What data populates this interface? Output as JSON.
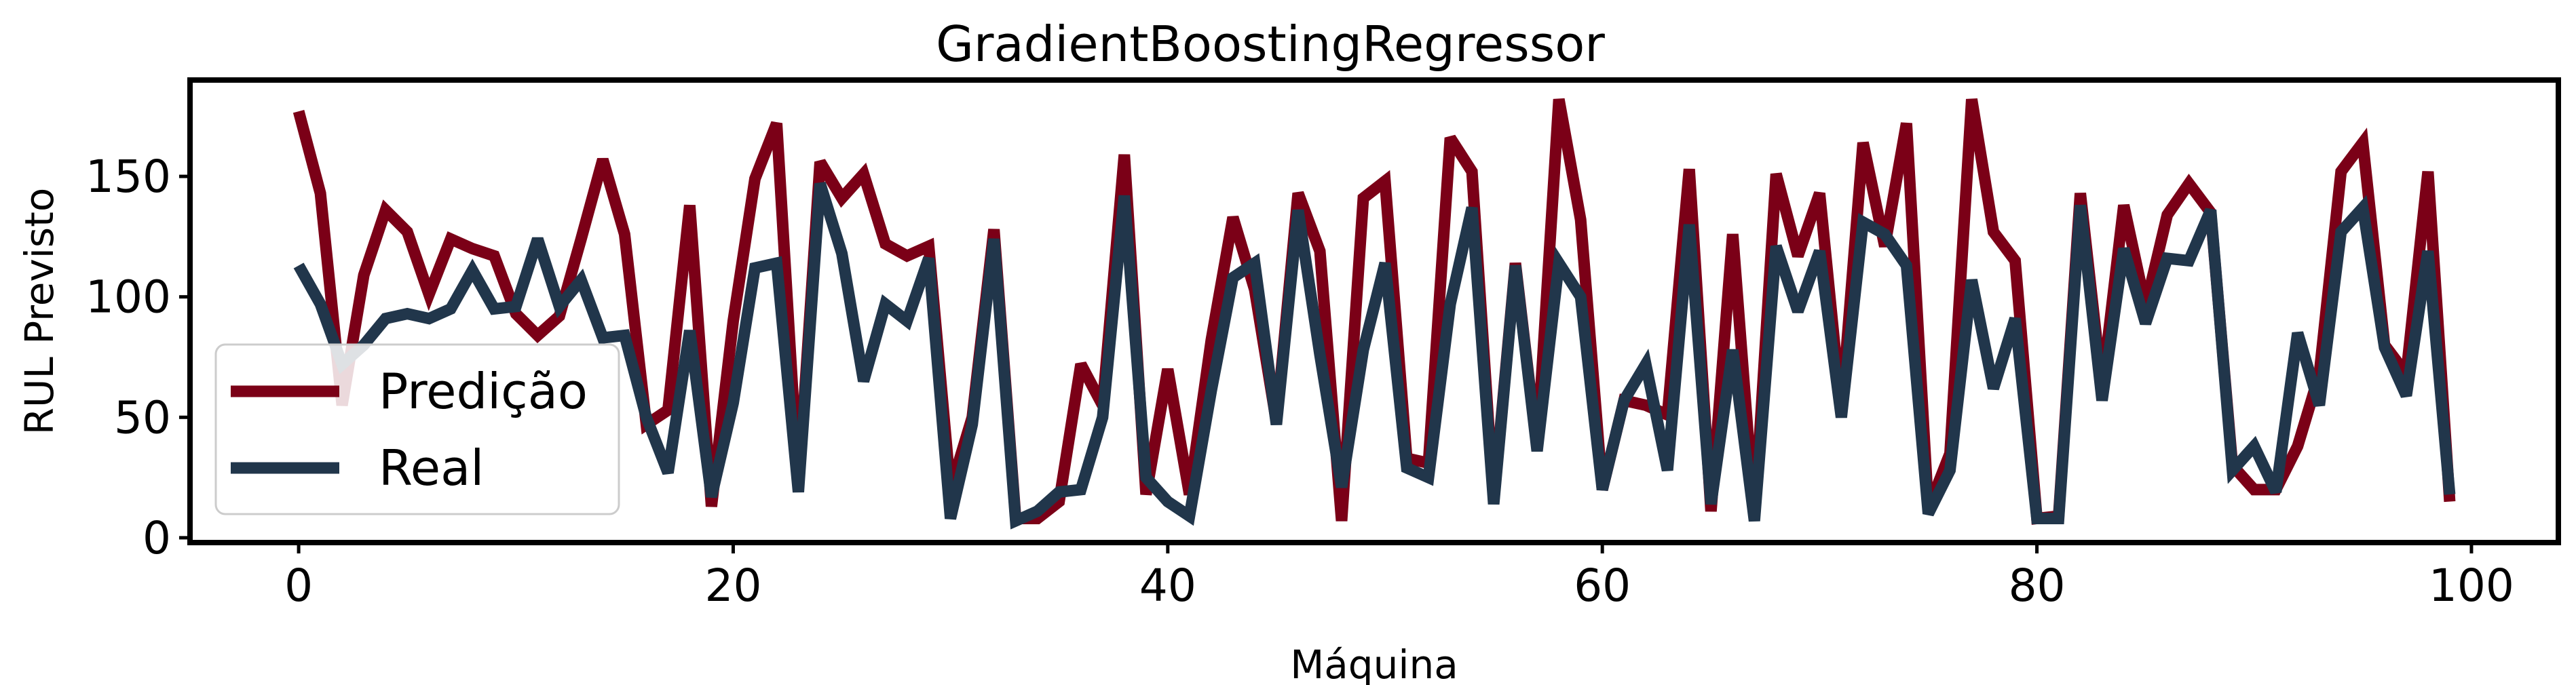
{
  "colors": {
    "predicao": "#7b0017",
    "real": "#21364b"
  },
  "chart_data": {
    "type": "line",
    "title": "GradientBoostingRegressor",
    "xlabel": "Máquina",
    "ylabel": "RUL Previsto",
    "xlim": [
      -5,
      104
    ],
    "ylim": [
      -2,
      190
    ],
    "xticks": [
      0,
      20,
      40,
      60,
      80,
      100
    ],
    "yticks": [
      0,
      50,
      100,
      150
    ],
    "legend_position": "lower-left",
    "x": [
      0,
      1,
      2,
      3,
      4,
      5,
      6,
      7,
      8,
      9,
      10,
      11,
      12,
      13,
      14,
      15,
      16,
      17,
      18,
      19,
      20,
      21,
      22,
      23,
      24,
      25,
      26,
      27,
      28,
      29,
      30,
      31,
      32,
      33,
      34,
      35,
      36,
      37,
      38,
      39,
      40,
      41,
      42,
      43,
      44,
      45,
      46,
      47,
      48,
      49,
      50,
      51,
      52,
      53,
      54,
      55,
      56,
      57,
      58,
      59,
      60,
      61,
      62,
      63,
      64,
      65,
      66,
      67,
      68,
      69,
      70,
      71,
      72,
      73,
      74,
      75,
      76,
      77,
      78,
      79,
      80,
      81,
      82,
      83,
      84,
      85,
      86,
      87,
      88,
      89,
      90,
      91,
      92,
      93,
      94,
      95,
      96,
      97,
      98,
      99
    ],
    "series": [
      {
        "name": "Predição",
        "values": [
          177,
          143,
          55,
          109,
          136,
          127,
          101,
          124,
          120,
          117,
          93,
          84,
          92,
          124,
          157,
          126,
          47,
          53,
          138,
          13,
          90,
          149,
          172,
          21,
          156,
          141,
          151,
          122,
          117,
          121,
          20,
          50,
          128,
          8,
          8,
          15,
          72,
          55,
          159,
          18,
          70,
          18,
          82,
          133,
          103,
          48,
          143,
          119,
          7,
          141,
          148,
          33,
          31,
          166,
          152,
          15,
          114,
          37,
          182,
          132,
          20,
          57,
          55,
          51,
          153,
          11,
          126,
          8,
          151,
          117,
          143,
          52,
          164,
          121,
          172,
          12,
          35,
          182,
          127,
          115,
          8,
          9,
          143,
          62,
          138,
          96,
          134,
          147,
          135,
          30,
          20,
          20,
          38,
          68,
          152,
          164,
          80,
          68,
          152,
          15
        ],
        "color_key": "predicao"
      },
      {
        "name": "Real",
        "values": [
          113,
          97,
          72,
          80,
          91,
          93,
          91,
          95,
          111,
          95,
          96,
          124,
          96,
          107,
          83,
          84,
          50,
          27,
          86,
          17,
          56,
          112,
          114,
          19,
          147,
          118,
          65,
          97,
          90,
          116,
          8,
          47,
          124,
          7,
          11,
          19,
          20,
          50,
          142,
          25,
          15,
          9,
          61,
          108,
          114,
          47,
          136,
          76,
          21,
          78,
          114,
          29,
          25,
          97,
          137,
          14,
          113,
          36,
          114,
          100,
          20,
          57,
          72,
          28,
          130,
          14,
          78,
          7,
          121,
          94,
          119,
          50,
          131,
          126,
          113,
          10,
          28,
          107,
          62,
          91,
          8,
          8,
          138,
          57,
          120,
          89,
          116,
          115,
          136,
          28,
          38,
          19,
          85,
          55,
          127,
          137,
          79,
          59,
          119,
          18
        ],
        "color_key": "real"
      }
    ]
  }
}
